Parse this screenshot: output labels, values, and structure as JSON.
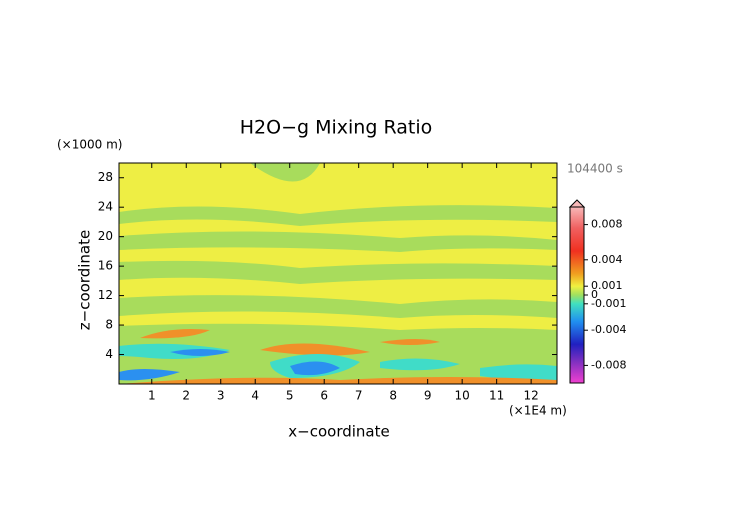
{
  "chart_data": {
    "type": "contour",
    "title": "H2O−g Mixing Ratio",
    "x_label": "x−coordinate",
    "y_label": "z−coordinate",
    "x_unit": "(×1E4 m)",
    "y_unit": "(×1000 m)",
    "time_label": "104400 s",
    "xlim": [
      0.05,
      12.75
    ],
    "xticks": [
      1,
      2,
      3,
      4,
      5,
      6,
      7,
      8,
      9,
      10,
      11,
      12
    ],
    "ylim": [
      0,
      30
    ],
    "yticks": [
      4,
      8,
      12,
      16,
      20,
      24,
      28
    ],
    "colorbar": {
      "lim": [
        -0.01,
        0.01
      ],
      "ticks": [
        0.008,
        0.004,
        0.001,
        0,
        -0.001,
        -0.004,
        -0.008
      ]
    }
  }
}
